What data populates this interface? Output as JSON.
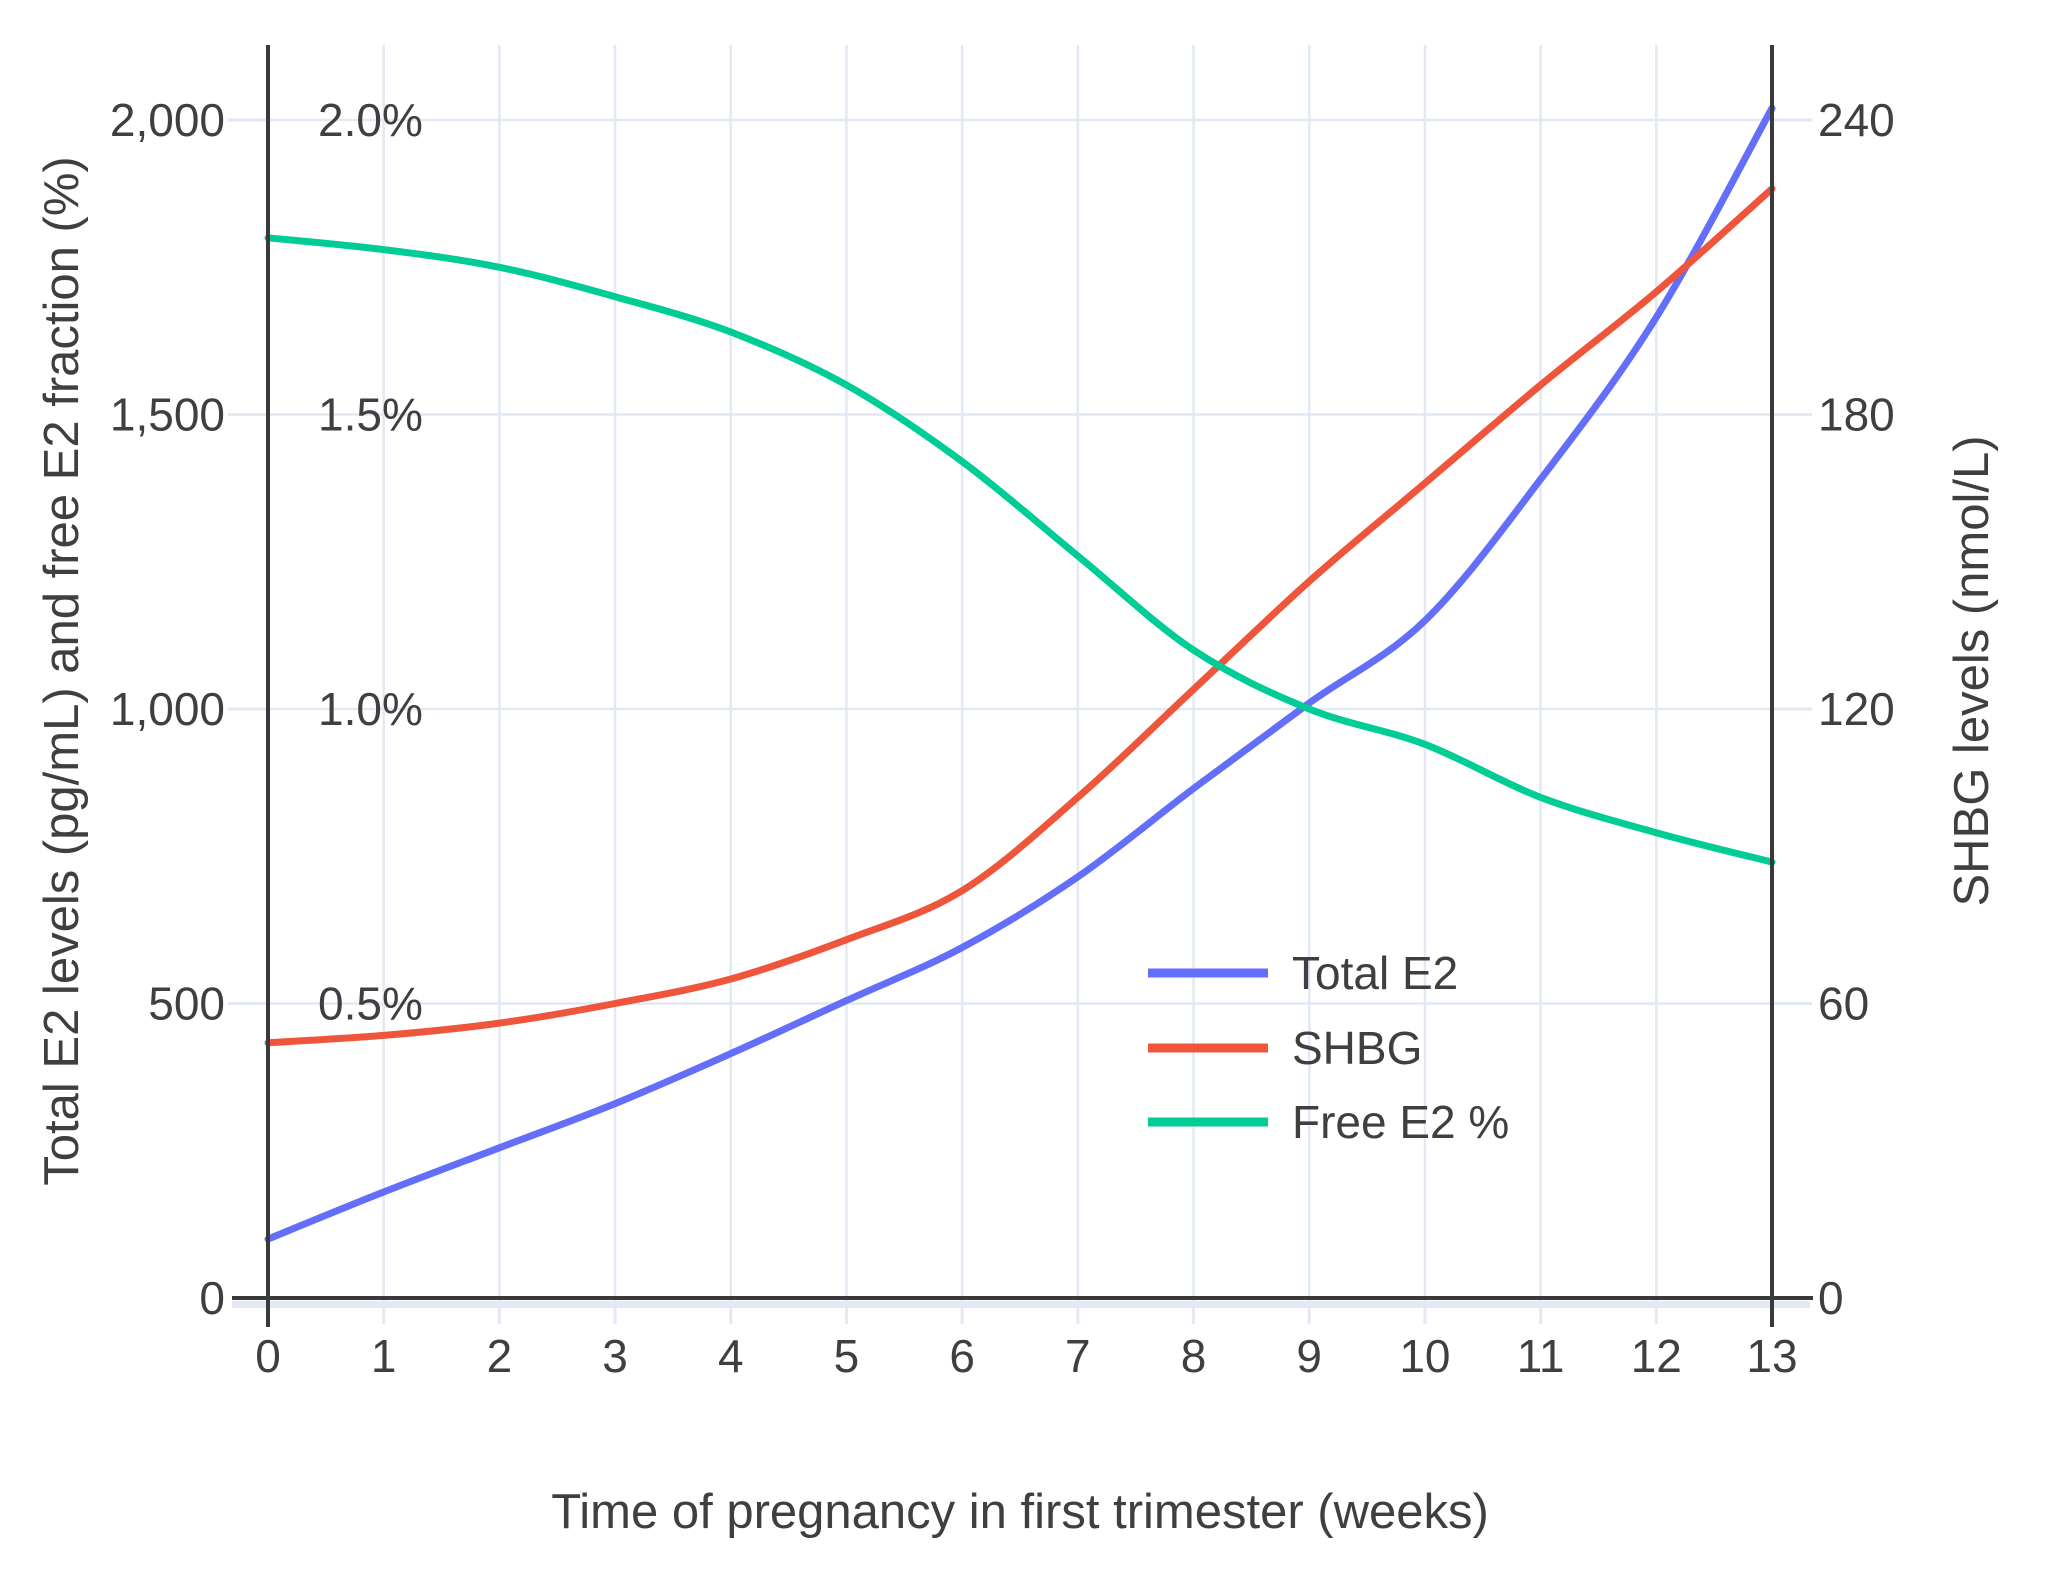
{
  "chart_data": {
    "type": "line",
    "title": "",
    "xlabel": "Time of pregnancy in first trimester (weeks)",
    "ylabel_left": "Total E2 levels (pg/mL) and free E2 fraction (%)",
    "ylabel_right": "SHBG levels (nmol/L)",
    "x": [
      0,
      1,
      2,
      3,
      4,
      5,
      6,
      7,
      8,
      9,
      10,
      11,
      12,
      13
    ],
    "x_tick_labels": [
      "0",
      "1",
      "2",
      "3",
      "4",
      "5",
      "6",
      "7",
      "8",
      "9",
      "10",
      "11",
      "12",
      "13"
    ],
    "series": [
      {
        "name": "Total E2",
        "axis": "left",
        "unit": "pg/mL",
        "color": "#636EFA",
        "values": [
          100,
          180,
          255,
          330,
          415,
          505,
          595,
          715,
          865,
          1010,
          1150,
          1390,
          1665,
          2020
        ]
      },
      {
        "name": "SHBG",
        "axis": "right",
        "unit": "nmol/L",
        "color": "#EF553B",
        "values": [
          52,
          53.5,
          56,
          60,
          65,
          73,
          83,
          102,
          124,
          146,
          166,
          186,
          205,
          226
        ]
      },
      {
        "name": "Free E2 %",
        "axis": "left_percent",
        "unit": "%",
        "color": "#00CC96",
        "values": [
          1.8,
          1.78,
          1.75,
          1.7,
          1.64,
          1.55,
          1.42,
          1.26,
          1.1,
          1.0,
          0.94,
          0.85,
          0.79,
          0.74
        ]
      }
    ],
    "left_axis": {
      "range": [
        0,
        2130
      ],
      "ticks": [
        0,
        500,
        1000,
        1500,
        2000
      ],
      "tick_labels": [
        "0",
        "500",
        "1,000",
        "1,500",
        "2,000"
      ],
      "percent_labels": [
        {
          "value": 500,
          "label": "0.5%"
        },
        {
          "value": 1000,
          "label": "1.0%"
        },
        {
          "value": 1500,
          "label": "1.5%"
        },
        {
          "value": 2000,
          "label": "2.0%"
        }
      ]
    },
    "right_axis": {
      "range": [
        0,
        255
      ],
      "ticks": [
        0,
        60,
        120,
        180,
        240
      ],
      "tick_labels": [
        "0",
        "60",
        "120",
        "180",
        "240"
      ]
    },
    "legend": {
      "position": "inside-right-middle",
      "entries": [
        "Total E2",
        "SHBG",
        "Free E2 %"
      ]
    },
    "grid": true
  },
  "colors": {
    "total_e2": "#636EFA",
    "shbg": "#EF553B",
    "free_e2": "#00CC96",
    "axis_line": "#3A3A3A",
    "grid_line": "#E2E9F4",
    "text": "#3F3F3F",
    "background": "#FFFFFF"
  }
}
